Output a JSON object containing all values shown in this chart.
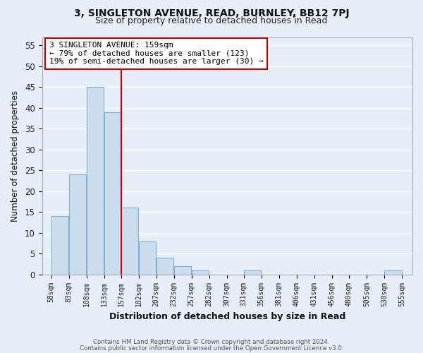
{
  "title_line1": "3, SINGLETON AVENUE, READ, BURNLEY, BB12 7PJ",
  "title_line2": "Size of property relative to detached houses in Read",
  "xlabel": "Distribution of detached houses by size in Read",
  "ylabel": "Number of detached properties",
  "bar_left_edges": [
    58,
    83,
    108,
    133,
    157,
    182,
    207,
    232,
    257,
    282,
    307,
    331,
    356,
    381,
    406,
    431,
    456,
    480,
    505,
    530
  ],
  "bar_widths": [
    25,
    25,
    25,
    25,
    25,
    25,
    25,
    25,
    25,
    25,
    24,
    25,
    25,
    25,
    25,
    25,
    24,
    25,
    25,
    25
  ],
  "bar_heights": [
    14,
    24,
    45,
    39,
    16,
    8,
    4,
    2,
    1,
    0,
    0,
    1,
    0,
    0,
    0,
    0,
    0,
    0,
    0,
    1
  ],
  "bar_color": "#ccddf0",
  "bar_edge_color": "#7ab0d4",
  "tick_labels": [
    "58sqm",
    "83sqm",
    "108sqm",
    "133sqm",
    "157sqm",
    "182sqm",
    "207sqm",
    "232sqm",
    "257sqm",
    "282sqm",
    "307sqm",
    "331sqm",
    "356sqm",
    "381sqm",
    "406sqm",
    "431sqm",
    "456sqm",
    "480sqm",
    "505sqm",
    "530sqm",
    "555sqm"
  ],
  "tick_positions": [
    58,
    83,
    108,
    133,
    157,
    182,
    207,
    232,
    257,
    282,
    307,
    331,
    356,
    381,
    406,
    431,
    456,
    480,
    505,
    530,
    555
  ],
  "property_line_x": 157,
  "property_line_color": "#cc0000",
  "ylim": [
    0,
    57
  ],
  "xlim": [
    45,
    570
  ],
  "yticks": [
    0,
    5,
    10,
    15,
    20,
    25,
    30,
    35,
    40,
    45,
    50,
    55
  ],
  "annotation_title": "3 SINGLETON AVENUE: 159sqm",
  "annotation_line1": "← 79% of detached houses are smaller (123)",
  "annotation_line2": "19% of semi-detached houses are larger (30) →",
  "footnote1": "Contains HM Land Registry data © Crown copyright and database right 2024.",
  "footnote2": "Contains public sector information licensed under the Open Government Licence v3.0.",
  "background_color": "#e8eef8",
  "plot_background_color": "#e8eef8",
  "grid_color": "#ffffff",
  "ann_box_edge_color": "#cc0000",
  "ann_box_face_color": "#ffffff"
}
